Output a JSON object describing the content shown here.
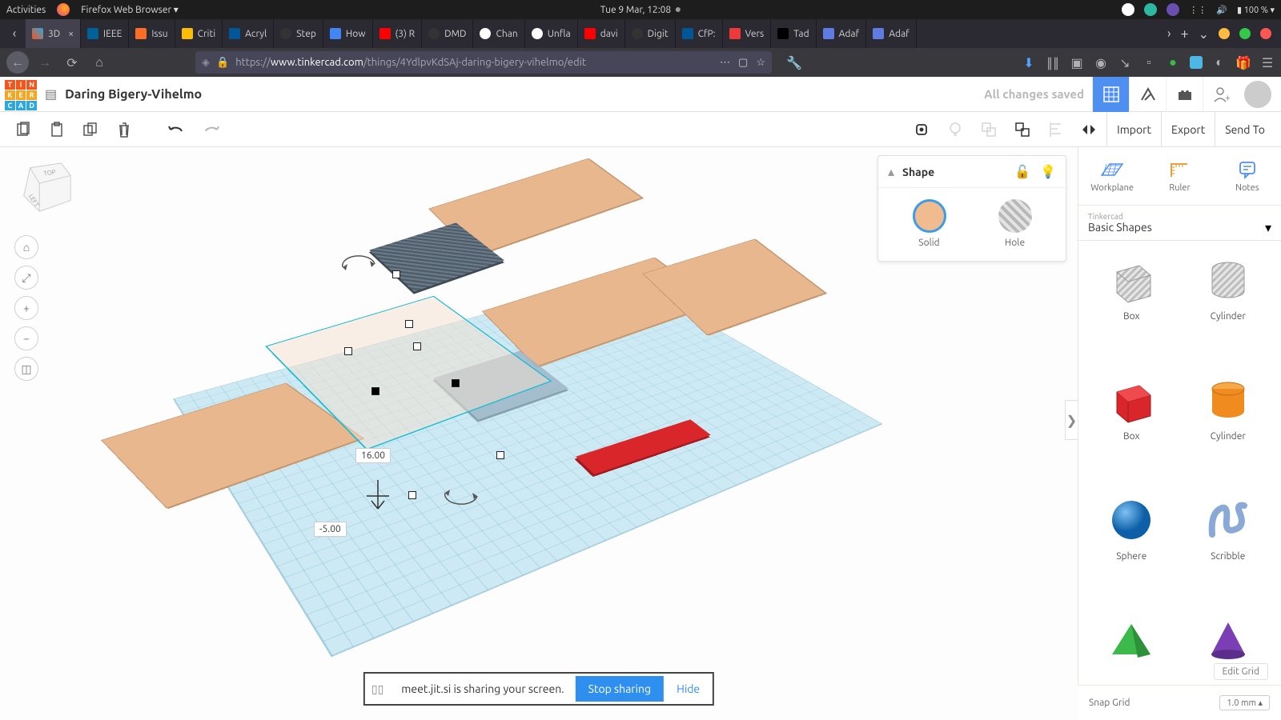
{
  "os": {
    "activities": "Activities",
    "app": "Firefox Web Browser",
    "datetime": "Tue  9 Mar, 12:08",
    "battery": "100 %",
    "tray_dots": [
      "#ffffff",
      "#2db8a2",
      "#6a4fb3"
    ]
  },
  "tabs": [
    {
      "label": "3D",
      "fav": "tc",
      "active": true,
      "has_close": true
    },
    {
      "label": "IEEE",
      "fav": "ieee"
    },
    {
      "label": "Issu",
      "fav": "gl"
    },
    {
      "label": "Criti",
      "fav": "gd"
    },
    {
      "label": "Acryl",
      "fav": "acm"
    },
    {
      "label": "Step",
      "fav": "gh"
    },
    {
      "label": "How",
      "fav": "g"
    },
    {
      "label": "(3) R",
      "fav": "yt"
    },
    {
      "label": "DMD",
      "fav": "gh"
    },
    {
      "label": "Chan",
      "fav": "w"
    },
    {
      "label": "Unfla",
      "fav": "w"
    },
    {
      "label": "davi",
      "fav": "yt"
    },
    {
      "label": "Digit",
      "fav": "gh"
    },
    {
      "label": "CfP:",
      "fav": "acm"
    },
    {
      "label": "Vers",
      "fav": "v"
    },
    {
      "label": "Tad",
      "fav": "n"
    },
    {
      "label": "Adaf",
      "fav": "af"
    },
    {
      "label": "Adaf",
      "fav": "af"
    }
  ],
  "url": {
    "scheme": "https://",
    "host": "www.tinkercad.com",
    "path": "/things/4YdlpvKdSAj-daring-bigery-vihelmo/edit"
  },
  "tc": {
    "title": "Daring Bigery-Vihelmo",
    "saved": "All changes saved"
  },
  "toolbar_right": {
    "import": "Import",
    "export": "Export",
    "sendto": "Send To"
  },
  "shape_panel": {
    "title": "Shape",
    "solid": "Solid",
    "hole": "Hole"
  },
  "right_panel": {
    "tiles": {
      "workplane": "Workplane",
      "ruler": "Ruler",
      "notes": "Notes"
    },
    "library_small": "Tinkercad",
    "library": "Basic Shapes",
    "shapes": [
      {
        "label": "Box",
        "color": "#c9c9c9",
        "kind": "box-stripe"
      },
      {
        "label": "Cylinder",
        "color": "#c9c9c9",
        "kind": "cyl-stripe"
      },
      {
        "label": "Box",
        "color": "#d9262a",
        "kind": "box"
      },
      {
        "label": "Cylinder",
        "color": "#ef8b1f",
        "kind": "cyl"
      },
      {
        "label": "Sphere",
        "color": "#1f7fd9",
        "kind": "sphere"
      },
      {
        "label": "Scribble",
        "color": "#8aa9d6",
        "kind": "scribble"
      },
      {
        "label": "",
        "color": "#3db84a",
        "kind": "pyramid"
      },
      {
        "label": "",
        "color": "#7a3fb5",
        "kind": "cone"
      }
    ]
  },
  "snap": {
    "edit_grid": "Edit Grid",
    "label": "Snap Grid",
    "value": "1.0 mm"
  },
  "dims": {
    "d1": "16.00",
    "d2": "-5.00"
  },
  "share": {
    "text": "meet.jit.si is sharing your screen.",
    "stop": "Stop sharing",
    "hide": "Hide"
  }
}
